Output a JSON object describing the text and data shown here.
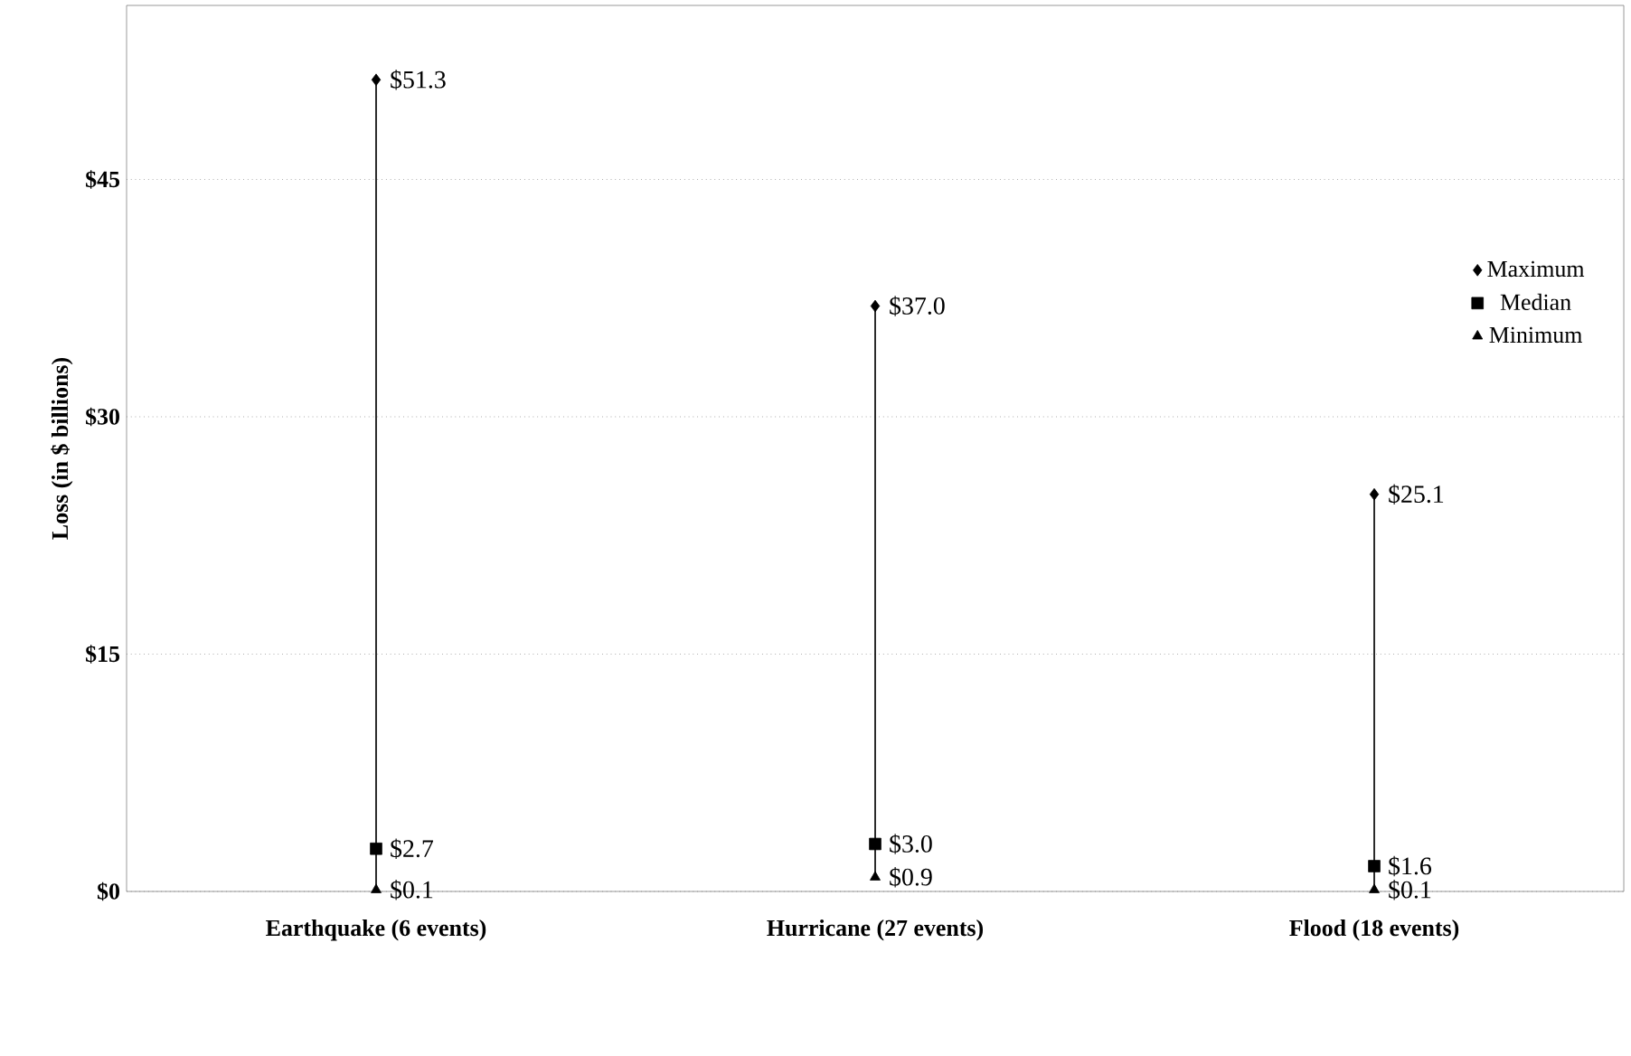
{
  "chart_data": {
    "type": "scatter",
    "ylabel": "Loss (in $ billions)",
    "categories": [
      "Earthquake (6 events)",
      "Hurricane (27 events)",
      "Flood (18 events)"
    ],
    "series": [
      {
        "type": "bar",
        "color": "#000000",
        "base": [
          0.1,
          0.9,
          0.1
        ],
        "values": [
          51.2,
          36.1,
          25.0
        ]
      },
      {
        "name": "Maximum",
        "color": "#000000",
        "marker": "diamond",
        "values": [
          51.3,
          37.0,
          25.1
        ],
        "value_labels": [
          "$51.3",
          "$37.0",
          "$25.1"
        ]
      },
      {
        "name": "Median",
        "color": "#000000",
        "marker": "square",
        "values": [
          2.7,
          3.0,
          1.6
        ],
        "value_labels": [
          "$2.7",
          "$3.0",
          "$1.6"
        ]
      },
      {
        "name": "Minimum",
        "color": "#000000",
        "marker": "triangle",
        "values": [
          0.1,
          0.9,
          0.1
        ],
        "value_labels": [
          "$0.1",
          "$0.9",
          "$0.1"
        ]
      }
    ],
    "ylim": [
      0,
      56
    ],
    "yticks": [
      {
        "value": 0,
        "label": "$0"
      },
      {
        "value": 15,
        "label": "$15"
      },
      {
        "value": 30,
        "label": "$30"
      },
      {
        "value": 45,
        "label": "$45"
      }
    ],
    "grid": "y",
    "legend": "right"
  }
}
